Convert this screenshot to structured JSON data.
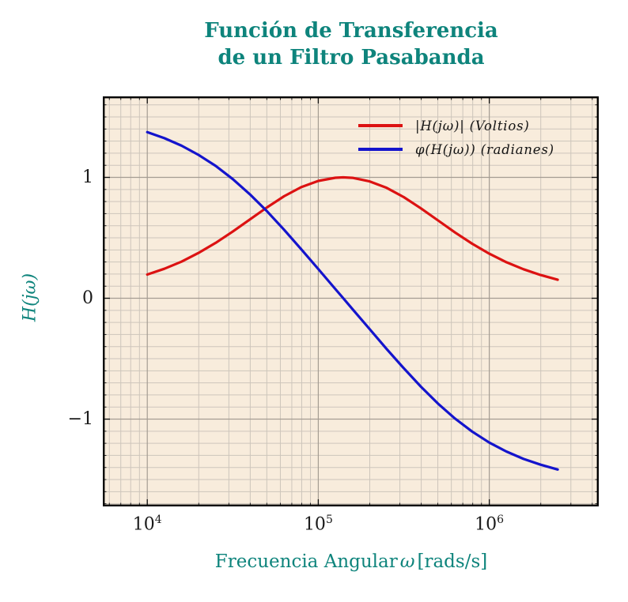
{
  "title": {
    "line1": "Función de Transferencia",
    "line2": "de un Filtro Pasabanda"
  },
  "colors": {
    "accent_teal": "#0e847c",
    "magnitude_red": "#dc1212",
    "phase_blue": "#1414cc",
    "plot_background": "#f8ecdc",
    "grid_minor": "#cdc5bb",
    "grid_major": "#a49c92",
    "frame": "#000000",
    "tick_text": "#1a1a1a"
  },
  "legend": [
    {
      "label": "|H(jω)| (Voltios)",
      "color": "#dc1212"
    },
    {
      "label": "φ(H(jω)) (radianes)",
      "color": "#1414cc"
    }
  ],
  "axes": {
    "x_label": {
      "pre": "Frecuencia Angular",
      "omega": "ω",
      "post": "[rads/s]"
    },
    "y_label": "H(jω)",
    "x_ticks": [
      {
        "base": "10",
        "exp": "4"
      },
      {
        "base": "10",
        "exp": "5"
      },
      {
        "base": "10",
        "exp": "6"
      }
    ],
    "y_ticks": [
      "1",
      "0",
      "−1"
    ]
  },
  "chart_data": {
    "type": "line",
    "title": "Función de Transferencia de un Filtro Pasabanda",
    "xlabel": "Frecuencia Angular ω [rads/s]",
    "ylabel": "H(jω)",
    "x_axis": {
      "scale": "log10",
      "range_log10": [
        3.74,
        6.64
      ],
      "major_ticks_log10": [
        4,
        5,
        6
      ],
      "major_tick_labels": [
        "10^4",
        "10^5",
        "10^6"
      ],
      "minor_grid": "log decades 2-9"
    },
    "y_axis": {
      "range": [
        -1.722,
        1.67
      ],
      "major_ticks": [
        1,
        0,
        -1
      ],
      "major_tick_labels": [
        "1",
        "0",
        "−1"
      ],
      "minor_step": 0.1
    },
    "grid": "both major and minor",
    "legend_position": "top right, no frame",
    "x_log10": [
      4.0,
      4.1,
      4.2,
      4.3,
      4.4,
      4.5,
      4.6,
      4.7,
      4.8,
      4.9,
      5.0,
      5.1,
      5.1461,
      5.2,
      5.3,
      5.4,
      5.5,
      5.6,
      5.7,
      5.8,
      5.9,
      6.0,
      6.1,
      6.2,
      6.3,
      6.4
    ],
    "omega_rad_s": [
      10000,
      12589,
      15849,
      19953,
      25119,
      31623,
      39811,
      50119,
      63096,
      79433,
      100000,
      125893,
      140000,
      158489,
      199526,
      251189,
      316228,
      398107,
      501187,
      630957,
      794328,
      1000000,
      1258925,
      1584893,
      1995262,
      2511886
    ],
    "series": [
      {
        "name": "|H(jω)| (Voltios)",
        "color": "#dc1212",
        "values": [
          0.196,
          0.244,
          0.303,
          0.375,
          0.458,
          0.552,
          0.652,
          0.752,
          0.844,
          0.919,
          0.971,
          0.997,
          1.0,
          0.996,
          0.967,
          0.913,
          0.837,
          0.744,
          0.644,
          0.544,
          0.451,
          0.369,
          0.298,
          0.24,
          0.192,
          0.153
        ]
      },
      {
        "name": "φ(H(jω)) (radianes)",
        "color": "#1414cc",
        "values": [
          1.374,
          1.324,
          1.262,
          1.186,
          1.095,
          0.986,
          0.86,
          0.72,
          0.567,
          0.406,
          0.242,
          0.076,
          0.0,
          -0.09,
          -0.255,
          -0.42,
          -0.579,
          -0.731,
          -0.872,
          -0.996,
          -1.103,
          -1.194,
          -1.268,
          -1.329,
          -1.377,
          -1.417
        ]
      }
    ]
  }
}
